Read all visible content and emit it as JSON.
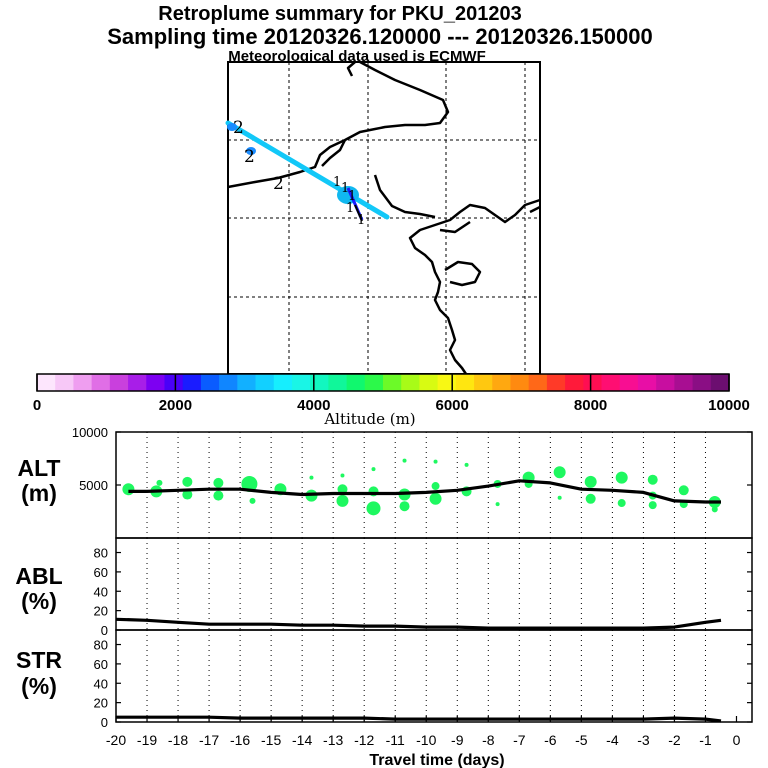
{
  "header": {
    "title": "Retroplume summary for PKU_201203",
    "sampling": "Sampling time   20120326.120000 --- 20120326.150000",
    "met": "Meteorological data used is ECMWF"
  },
  "colorbar": {
    "label": "Altitude (m)",
    "ticks": [
      "0",
      "2000",
      "4000",
      "6000",
      "8000",
      "10000"
    ],
    "colors": [
      "#fde6fd",
      "#f7c8f7",
      "#ef9ef0",
      "#e06ee6",
      "#c940dd",
      "#a81ee8",
      "#7d00f2",
      "#4a00f8",
      "#1a1cff",
      "#0a5cff",
      "#1086ff",
      "#12b0ff",
      "#12d0ff",
      "#16eefe",
      "#1af5e6",
      "#12f7c0",
      "#10f79a",
      "#10f86e",
      "#2cf94a",
      "#6cfa28",
      "#a8fb18",
      "#d8fb12",
      "#f8f814",
      "#ffe610",
      "#ffc810",
      "#ffa810",
      "#ff8a10",
      "#ff6818",
      "#ff3a28",
      "#ff1a3a",
      "#ff0e52",
      "#ff0e72",
      "#f80e92",
      "#e80ea6",
      "#c80ea0",
      "#a80e92",
      "#8a0e84",
      "#6c0e70"
    ]
  },
  "map": {
    "labels": [
      "2",
      "2",
      "2",
      "1",
      "1",
      "1",
      "1",
      "1"
    ]
  },
  "panels": {
    "alt": {
      "label1": "ALT",
      "label2": "(m)"
    },
    "abl": {
      "label1": "ABL",
      "label2": "(%)"
    },
    "str": {
      "label1": "STR",
      "label2": "(%)"
    },
    "xlabel": "Travel time (days)"
  },
  "chart_data": [
    {
      "type": "line",
      "name": "ALT",
      "ylabel": "ALT (m)",
      "ylim": [
        0,
        10000
      ],
      "yticks": [
        "5000",
        "10000"
      ],
      "x": [
        -19.6,
        -19,
        -18,
        -17,
        -16,
        -15,
        -14,
        -13,
        -12,
        -11,
        -10,
        -9,
        -8,
        -7,
        -6,
        -5,
        -4,
        -3,
        -2,
        -1,
        -0.5
      ],
      "values": [
        4400,
        4400,
        4500,
        4600,
        4600,
        4300,
        4100,
        4200,
        4200,
        4200,
        4300,
        4500,
        4900,
        5400,
        5200,
        4600,
        4500,
        4300,
        3500,
        3400,
        3400
      ],
      "scatter": {
        "color": "#1ef860",
        "points": [
          {
            "x": -19.6,
            "y": 4600,
            "s": 6
          },
          {
            "x": -18.7,
            "y": 4400,
            "s": 6
          },
          {
            "x": -18.6,
            "y": 5200,
            "s": 3
          },
          {
            "x": -17.7,
            "y": 5300,
            "s": 5
          },
          {
            "x": -17.7,
            "y": 4100,
            "s": 5
          },
          {
            "x": -16.7,
            "y": 5200,
            "s": 5
          },
          {
            "x": -16.7,
            "y": 4000,
            "s": 5
          },
          {
            "x": -15.7,
            "y": 5100,
            "s": 8
          },
          {
            "x": -15.6,
            "y": 3500,
            "s": 3
          },
          {
            "x": -14.7,
            "y": 4600,
            "s": 6
          },
          {
            "x": -13.7,
            "y": 4000,
            "s": 6
          },
          {
            "x": -13.7,
            "y": 5700,
            "s": 2
          },
          {
            "x": -12.7,
            "y": 3500,
            "s": 6
          },
          {
            "x": -12.7,
            "y": 4600,
            "s": 5
          },
          {
            "x": -12.7,
            "y": 5900,
            "s": 2
          },
          {
            "x": -11.7,
            "y": 2800,
            "s": 7
          },
          {
            "x": -11.7,
            "y": 4400,
            "s": 5
          },
          {
            "x": -11.7,
            "y": 6500,
            "s": 2
          },
          {
            "x": -10.7,
            "y": 3000,
            "s": 5
          },
          {
            "x": -10.7,
            "y": 4100,
            "s": 6
          },
          {
            "x": -10.7,
            "y": 7300,
            "s": 2
          },
          {
            "x": -9.7,
            "y": 3700,
            "s": 6
          },
          {
            "x": -9.7,
            "y": 4900,
            "s": 4
          },
          {
            "x": -9.7,
            "y": 7200,
            "s": 2
          },
          {
            "x": -8.7,
            "y": 4400,
            "s": 5
          },
          {
            "x": -8.7,
            "y": 6900,
            "s": 2
          },
          {
            "x": -7.7,
            "y": 5100,
            "s": 4
          },
          {
            "x": -7.7,
            "y": 3200,
            "s": 2
          },
          {
            "x": -6.7,
            "y": 5700,
            "s": 6
          },
          {
            "x": -6.7,
            "y": 5100,
            "s": 4
          },
          {
            "x": -5.7,
            "y": 6200,
            "s": 6
          },
          {
            "x": -5.7,
            "y": 3800,
            "s": 2
          },
          {
            "x": -4.7,
            "y": 5300,
            "s": 6
          },
          {
            "x": -4.7,
            "y": 3700,
            "s": 5
          },
          {
            "x": -3.7,
            "y": 5700,
            "s": 6
          },
          {
            "x": -3.7,
            "y": 3300,
            "s": 4
          },
          {
            "x": -2.7,
            "y": 5500,
            "s": 5
          },
          {
            "x": -2.7,
            "y": 4000,
            "s": 4
          },
          {
            "x": -2.7,
            "y": 3100,
            "s": 4
          },
          {
            "x": -1.7,
            "y": 4500,
            "s": 5
          },
          {
            "x": -1.7,
            "y": 3200,
            "s": 4
          },
          {
            "x": -0.7,
            "y": 3400,
            "s": 6
          },
          {
            "x": -0.7,
            "y": 2700,
            "s": 3
          }
        ]
      }
    },
    {
      "type": "line",
      "name": "ABL",
      "ylabel": "ABL (%)",
      "ylim": [
        0,
        95
      ],
      "yticks": [
        "0",
        "20",
        "40",
        "60",
        "80"
      ],
      "x": [
        -20,
        -19,
        -18,
        -17,
        -16,
        -15,
        -14,
        -13,
        -12,
        -11,
        -10,
        -9,
        -8,
        -7,
        -6,
        -5,
        -4,
        -3,
        -2,
        -1,
        -0.5
      ],
      "values": [
        11,
        10,
        8,
        6,
        6,
        6,
        5,
        5,
        4,
        4,
        3,
        3,
        2,
        2,
        2,
        2,
        2,
        2,
        3,
        8,
        10
      ]
    },
    {
      "type": "line",
      "name": "STR",
      "ylabel": "STR (%)",
      "ylim": [
        0,
        95
      ],
      "yticks": [
        "0",
        "20",
        "40",
        "60",
        "80"
      ],
      "x": [
        -20,
        -19,
        -18,
        -17,
        -16,
        -15,
        -14,
        -13,
        -12,
        -11,
        -10,
        -9,
        -8,
        -7,
        -6,
        -5,
        -4,
        -3,
        -2,
        -1,
        -0.5
      ],
      "values": [
        5,
        5,
        5,
        5,
        4,
        4,
        4,
        4,
        4,
        3,
        3,
        3,
        3,
        3,
        3,
        3,
        3,
        3,
        4,
        3,
        1
      ]
    }
  ],
  "xaxis": {
    "ticks": [
      "-20",
      "-19",
      "-18",
      "-17",
      "-16",
      "-15",
      "-14",
      "-13",
      "-12",
      "-11",
      "-10",
      "-9",
      "-8",
      "-7",
      "-6",
      "-5",
      "-4",
      "-3",
      "-2",
      "-1",
      "0"
    ]
  }
}
